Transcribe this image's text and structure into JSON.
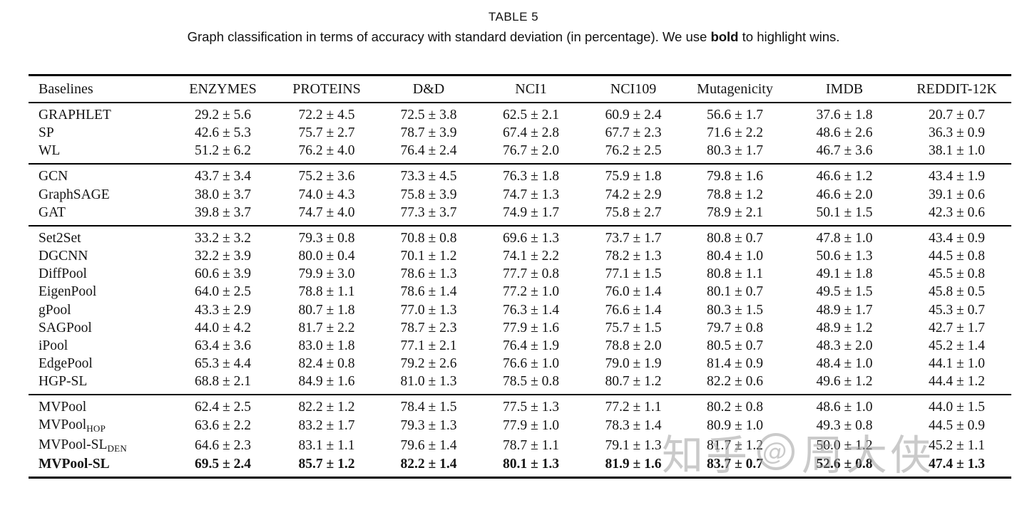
{
  "title": "TABLE 5",
  "caption": {
    "pre": "Graph classification in terms of accuracy with standard deviation (in percentage). We use ",
    "bold_word": "bold",
    "post": " to highlight wins."
  },
  "watermark": {
    "site": "知乎",
    "at": "@",
    "user": "周大侠"
  },
  "chart_data": {
    "type": "table",
    "title": "Graph classification accuracy with standard deviation (%)",
    "columns": [
      "Baselines",
      "ENZYMES",
      "PROTEINS",
      "D&D",
      "NCI1",
      "NCI109",
      "Mutagenicity",
      "IMDB",
      "REDDIT-12K"
    ],
    "groups": [
      {
        "rows": [
          {
            "name": "GRAPHLET",
            "sub": "",
            "bold": false,
            "values": [
              "29.2 ± 5.6",
              "72.2 ± 4.5",
              "72.5 ± 3.8",
              "62.5 ± 2.1",
              "60.9 ± 2.4",
              "56.6 ± 1.7",
              "37.6 ± 1.8",
              "20.7 ± 0.7"
            ]
          },
          {
            "name": "SP",
            "sub": "",
            "bold": false,
            "values": [
              "42.6 ± 5.3",
              "75.7 ± 2.7",
              "78.7 ± 3.9",
              "67.4 ± 2.8",
              "67.7 ± 2.3",
              "71.6 ± 2.2",
              "48.6 ± 2.6",
              "36.3 ± 0.9"
            ]
          },
          {
            "name": "WL",
            "sub": "",
            "bold": false,
            "values": [
              "51.2 ± 6.2",
              "76.2 ± 4.0",
              "76.4 ± 2.4",
              "76.7 ± 2.0",
              "76.2 ± 2.5",
              "80.3 ± 1.7",
              "46.7 ± 3.6",
              "38.1 ± 1.0"
            ]
          }
        ]
      },
      {
        "rows": [
          {
            "name": "GCN",
            "sub": "",
            "bold": false,
            "values": [
              "43.7 ± 3.4",
              "75.2 ± 3.6",
              "73.3 ± 4.5",
              "76.3 ± 1.8",
              "75.9 ± 1.8",
              "79.8 ± 1.6",
              "46.6 ± 1.2",
              "43.4 ± 1.9"
            ]
          },
          {
            "name": "GraphSAGE",
            "sub": "",
            "bold": false,
            "values": [
              "38.0 ± 3.7",
              "74.0 ± 4.3",
              "75.8 ± 3.9",
              "74.7 ± 1.3",
              "74.2 ± 2.9",
              "78.8 ± 1.2",
              "46.6 ± 2.0",
              "39.1 ± 0.6"
            ]
          },
          {
            "name": "GAT",
            "sub": "",
            "bold": false,
            "values": [
              "39.8 ± 3.7",
              "74.7 ± 4.0",
              "77.3 ± 3.7",
              "74.9 ± 1.7",
              "75.8 ± 2.7",
              "78.9 ± 2.1",
              "50.1 ± 1.5",
              "42.3 ± 0.6"
            ]
          }
        ]
      },
      {
        "rows": [
          {
            "name": "Set2Set",
            "sub": "",
            "bold": false,
            "values": [
              "33.2 ± 3.2",
              "79.3 ± 0.8",
              "70.8 ± 0.8",
              "69.6 ± 1.3",
              "73.7 ± 1.7",
              "80.8 ± 0.7",
              "47.8 ± 1.0",
              "43.4 ± 0.9"
            ]
          },
          {
            "name": "DGCNN",
            "sub": "",
            "bold": false,
            "values": [
              "32.2 ± 3.9",
              "80.0 ± 0.4",
              "70.1 ± 1.2",
              "74.1 ± 2.2",
              "78.2 ± 1.3",
              "80.4 ± 1.0",
              "50.6 ± 1.3",
              "44.5 ± 0.8"
            ]
          },
          {
            "name": "DiffPool",
            "sub": "",
            "bold": false,
            "values": [
              "60.6 ± 3.9",
              "79.9 ± 3.0",
              "78.6 ± 1.3",
              "77.7 ± 0.8",
              "77.1 ± 1.5",
              "80.8 ± 1.1",
              "49.1 ± 1.8",
              "45.5 ± 0.8"
            ]
          },
          {
            "name": "EigenPool",
            "sub": "",
            "bold": false,
            "values": [
              "64.0 ± 2.5",
              "78.8 ± 1.1",
              "78.6 ± 1.4",
              "77.2 ± 1.0",
              "76.0 ± 1.4",
              "80.1 ± 0.7",
              "49.5 ± 1.5",
              "45.8 ± 0.5"
            ]
          },
          {
            "name": "gPool",
            "sub": "",
            "bold": false,
            "values": [
              "43.3 ± 2.9",
              "80.7 ± 1.8",
              "77.0 ± 1.3",
              "76.3 ± 1.4",
              "76.6 ± 1.4",
              "80.3 ± 1.5",
              "48.9 ± 1.7",
              "45.3 ± 0.7"
            ]
          },
          {
            "name": "SAGPool",
            "sub": "",
            "bold": false,
            "values": [
              "44.0 ± 4.2",
              "81.7 ± 2.2",
              "78.7 ± 2.3",
              "77.9 ± 1.6",
              "75.7 ± 1.5",
              "79.7 ± 0.8",
              "48.9 ± 1.2",
              "42.7 ± 1.7"
            ]
          },
          {
            "name": "iPool",
            "sub": "",
            "bold": false,
            "values": [
              "63.4 ± 3.6",
              "83.0 ± 1.8",
              "77.1 ± 2.1",
              "76.4 ± 1.9",
              "78.8 ± 2.0",
              "80.5 ± 0.7",
              "48.3 ± 2.0",
              "45.2 ± 1.4"
            ]
          },
          {
            "name": "EdgePool",
            "sub": "",
            "bold": false,
            "values": [
              "65.3 ± 4.4",
              "82.4 ± 0.8",
              "79.2 ± 2.6",
              "76.6 ± 1.0",
              "79.0 ± 1.9",
              "81.4 ± 0.9",
              "48.4 ± 1.0",
              "44.1 ± 1.0"
            ]
          },
          {
            "name": "HGP-SL",
            "sub": "",
            "bold": false,
            "values": [
              "68.8 ± 2.1",
              "84.9 ± 1.6",
              "81.0 ± 1.3",
              "78.5 ± 0.8",
              "80.7 ± 1.2",
              "82.2 ± 0.6",
              "49.6 ± 1.2",
              "44.4 ± 1.2"
            ]
          }
        ]
      },
      {
        "rows": [
          {
            "name": "MVPool",
            "sub": "",
            "bold": false,
            "values": [
              "62.4 ± 2.5",
              "82.2 ± 1.2",
              "78.4 ± 1.5",
              "77.5 ± 1.3",
              "77.2 ± 1.1",
              "80.2 ± 0.8",
              "48.6 ± 1.0",
              "44.0 ± 1.5"
            ]
          },
          {
            "name": "MVPool",
            "sub": "HOP",
            "bold": false,
            "values": [
              "63.6 ± 2.2",
              "83.2 ± 1.7",
              "79.3 ± 1.3",
              "77.9 ± 1.0",
              "78.3 ± 1.4",
              "80.9 ± 1.0",
              "49.3 ± 0.8",
              "44.5 ± 0.9"
            ]
          },
          {
            "name": "MVPool-SL",
            "sub": "DEN",
            "bold": false,
            "values": [
              "64.6 ± 2.3",
              "83.1 ± 1.1",
              "79.6 ± 1.4",
              "78.7 ± 1.1",
              "79.1 ± 1.3",
              "81.7 ± 1.2",
              "50.0 ± 1.2",
              "45.2 ± 1.1"
            ]
          },
          {
            "name": "MVPool-SL",
            "sub": "",
            "bold": true,
            "values": [
              "69.5 ± 2.4",
              "85.7 ± 1.2",
              "82.2 ± 1.4",
              "80.1 ± 1.3",
              "81.9 ± 1.6",
              "83.7 ± 0.7",
              "52.6 ± 0.8",
              "47.4 ± 1.3"
            ]
          }
        ]
      }
    ]
  }
}
